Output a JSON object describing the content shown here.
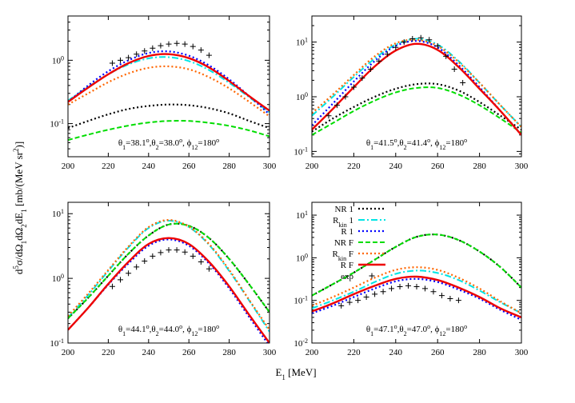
{
  "figure": {
    "xlabel": "E1 [MeV]",
    "ylabel": "d5σ/dΩ1dΩ2dE1 [mb/(MeV sr2)]"
  },
  "legend": {
    "panel": 3,
    "items": [
      {
        "series": "NR1",
        "label": "NR 1",
        "sub": ""
      },
      {
        "series": "Rkin1",
        "label": "R",
        "sub": "kin",
        "suffix": " 1"
      },
      {
        "series": "R1",
        "label": "R 1",
        "sub": ""
      },
      {
        "series": "NRF",
        "label": "NR F",
        "sub": ""
      },
      {
        "series": "RkinF",
        "label": "R",
        "sub": "kin",
        "suffix": " F"
      },
      {
        "series": "RF",
        "label": "R F",
        "sub": ""
      },
      {
        "series": "exp",
        "label": "exp",
        "sub": ""
      }
    ]
  },
  "series_styles": {
    "NR1": {
      "color": "#000000",
      "dash": "2,3",
      "width": 2.2
    },
    "Rkin1": {
      "color": "#00e5e5",
      "dash": "8,3,2,3",
      "width": 2
    },
    "R1": {
      "color": "#0000ff",
      "dash": "2,3",
      "width": 2.2
    },
    "NRF": {
      "color": "#00dd00",
      "dash": "6,3",
      "width": 2
    },
    "RkinF": {
      "color": "#ff6600",
      "dash": "2,3",
      "width": 2.2
    },
    "RF": {
      "color": "#ee0000",
      "dash": "",
      "width": 2.4
    },
    "exp": {
      "color": "#000000",
      "marker": "plus"
    }
  },
  "chart_data": [
    {
      "type": "line",
      "log_y": true,
      "xlim": [
        200,
        300
      ],
      "ylim": [
        0.03,
        5
      ],
      "xticks": [
        200,
        220,
        240,
        260,
        280,
        300
      ],
      "yticks": [
        {
          "v": 0.1,
          "label": "10-1",
          "base": "10",
          "exp": "-1"
        },
        {
          "v": 1,
          "label": "100",
          "base": "10",
          "exp": "0"
        }
      ],
      "annotation": {
        "t1": "38.1",
        "t2": "38.0",
        "phi": "180"
      },
      "annotation_text": "θ1=38.1o,θ2=38.0o, ϕ12=180o",
      "series": [
        {
          "key": "NR1",
          "x": [
            200,
            210,
            220,
            230,
            240,
            250,
            260,
            270,
            280,
            290,
            300
          ],
          "y": [
            0.085,
            0.11,
            0.14,
            0.17,
            0.19,
            0.2,
            0.195,
            0.175,
            0.145,
            0.11,
            0.085
          ]
        },
        {
          "key": "Rkin1",
          "x": [
            200,
            210,
            220,
            230,
            240,
            250,
            260,
            270,
            280,
            290,
            300
          ],
          "y": [
            0.23,
            0.38,
            0.6,
            0.86,
            1.07,
            1.12,
            0.97,
            0.7,
            0.44,
            0.26,
            0.15
          ]
        },
        {
          "key": "R1",
          "x": [
            200,
            210,
            220,
            230,
            240,
            250,
            260,
            270,
            280,
            290,
            300
          ],
          "y": [
            0.22,
            0.4,
            0.67,
            1.0,
            1.3,
            1.38,
            1.18,
            0.83,
            0.5,
            0.27,
            0.14
          ]
        },
        {
          "key": "NRF",
          "x": [
            200,
            210,
            220,
            230,
            240,
            250,
            260,
            270,
            280,
            290,
            300
          ],
          "y": [
            0.055,
            0.067,
            0.08,
            0.093,
            0.104,
            0.11,
            0.11,
            0.103,
            0.092,
            0.078,
            0.063
          ]
        },
        {
          "key": "RkinF",
          "x": [
            200,
            210,
            220,
            230,
            240,
            250,
            260,
            270,
            280,
            290,
            300
          ],
          "y": [
            0.2,
            0.3,
            0.45,
            0.62,
            0.76,
            0.8,
            0.72,
            0.54,
            0.36,
            0.22,
            0.13
          ]
        },
        {
          "key": "RF",
          "x": [
            200,
            210,
            220,
            230,
            240,
            250,
            260,
            270,
            280,
            290,
            300
          ],
          "y": [
            0.22,
            0.37,
            0.6,
            0.9,
            1.17,
            1.25,
            1.08,
            0.77,
            0.47,
            0.27,
            0.16
          ]
        },
        {
          "key": "exp",
          "x": [
            222,
            226,
            230,
            234,
            238,
            242,
            246,
            250,
            254,
            258,
            262,
            266,
            270
          ],
          "y": [
            0.9,
            1.0,
            1.1,
            1.25,
            1.4,
            1.55,
            1.7,
            1.8,
            1.85,
            1.8,
            1.65,
            1.45,
            1.2
          ]
        }
      ]
    },
    {
      "type": "line",
      "log_y": true,
      "xlim": [
        200,
        300
      ],
      "ylim": [
        0.08,
        30
      ],
      "xticks": [
        200,
        220,
        240,
        260,
        280,
        300
      ],
      "yticks": [
        {
          "v": 0.1,
          "label": "10-1",
          "base": "10",
          "exp": "-1"
        },
        {
          "v": 1,
          "label": "100",
          "base": "10",
          "exp": "0"
        },
        {
          "v": 10,
          "label": "101",
          "base": "10",
          "exp": "1"
        }
      ],
      "annotation": {
        "t1": "41.5",
        "t2": "41.4",
        "phi": "180"
      },
      "annotation_text": "θ1=41.5o,θ2=41.4o, ϕ12=180o",
      "series": [
        {
          "key": "NR1",
          "x": [
            200,
            210,
            220,
            230,
            240,
            250,
            260,
            270,
            280,
            290,
            300
          ],
          "y": [
            0.23,
            0.4,
            0.65,
            1.0,
            1.4,
            1.7,
            1.7,
            1.3,
            0.8,
            0.45,
            0.25
          ]
        },
        {
          "key": "Rkin1",
          "x": [
            200,
            210,
            220,
            230,
            240,
            250,
            260,
            270,
            280,
            290,
            300
          ],
          "y": [
            0.45,
            1.0,
            2.3,
            5.0,
            9.0,
            11.5,
            9.0,
            4.5,
            1.8,
            0.7,
            0.28
          ]
        },
        {
          "key": "R1",
          "x": [
            200,
            210,
            220,
            230,
            240,
            250,
            260,
            270,
            280,
            290,
            300
          ],
          "y": [
            0.3,
            0.75,
            1.9,
            4.5,
            8.5,
            10.5,
            8.0,
            3.8,
            1.5,
            0.55,
            0.2
          ]
        },
        {
          "key": "NRF",
          "x": [
            200,
            210,
            220,
            230,
            240,
            250,
            260,
            270,
            280,
            290,
            300
          ],
          "y": [
            0.2,
            0.33,
            0.55,
            0.85,
            1.2,
            1.45,
            1.45,
            1.1,
            0.7,
            0.4,
            0.22
          ]
        },
        {
          "key": "RkinF",
          "x": [
            200,
            210,
            220,
            230,
            240,
            250,
            260,
            270,
            280,
            290,
            300
          ],
          "y": [
            0.5,
            1.1,
            2.5,
            5.5,
            9.5,
            11.0,
            8.5,
            4.3,
            1.8,
            0.7,
            0.28
          ]
        },
        {
          "key": "RF",
          "x": [
            200,
            210,
            220,
            230,
            240,
            250,
            260,
            270,
            280,
            290,
            300
          ],
          "y": [
            0.25,
            0.6,
            1.5,
            3.6,
            7.0,
            9.3,
            7.2,
            3.5,
            1.4,
            0.55,
            0.2
          ]
        },
        {
          "key": "exp",
          "x": [
            208,
            212,
            216,
            220,
            224,
            228,
            232,
            236,
            240,
            244,
            248,
            252,
            256,
            260,
            264,
            268,
            272
          ],
          "y": [
            0.45,
            0.7,
            1.0,
            1.5,
            2.2,
            3.2,
            4.5,
            6.0,
            8.0,
            10.0,
            11.5,
            12.0,
            11.0,
            8.5,
            5.5,
            3.2,
            1.8
          ]
        }
      ]
    },
    {
      "type": "line",
      "log_y": true,
      "xlim": [
        200,
        300
      ],
      "ylim": [
        0.1,
        15
      ],
      "xticks": [
        200,
        220,
        240,
        260,
        280,
        300
      ],
      "yticks": [
        {
          "v": 0.1,
          "label": "10-1",
          "base": "10",
          "exp": "-1"
        },
        {
          "v": 1,
          "label": "100",
          "base": "10",
          "exp": "0"
        },
        {
          "v": 10,
          "label": "101",
          "base": "10",
          "exp": "1"
        }
      ],
      "annotation": {
        "t1": "44.1",
        "t2": "44.0",
        "phi": "180"
      },
      "annotation_text": "θ1=44.1o,θ2=44.0o, ϕ12=180o",
      "series": [
        {
          "key": "NR1",
          "x": [
            200,
            210,
            220,
            230,
            240,
            250,
            260,
            270,
            280,
            290,
            300
          ],
          "y": [
            0.24,
            0.5,
            1.1,
            2.4,
            4.6,
            6.8,
            6.5,
            4.2,
            2.0,
            0.8,
            0.3
          ]
        },
        {
          "key": "Rkin1",
          "x": [
            200,
            210,
            220,
            230,
            240,
            250,
            260,
            270,
            280,
            290,
            300
          ],
          "y": [
            0.25,
            0.55,
            1.3,
            3.0,
            6.0,
            7.8,
            6.2,
            3.3,
            1.3,
            0.45,
            0.15
          ]
        },
        {
          "key": "R1",
          "x": [
            200,
            210,
            220,
            230,
            240,
            250,
            260,
            270,
            280,
            290,
            300
          ],
          "y": [
            0.16,
            0.35,
            0.8,
            1.7,
            3.2,
            4.0,
            3.2,
            1.7,
            0.7,
            0.25,
            0.09
          ]
        },
        {
          "key": "NRF",
          "x": [
            200,
            210,
            220,
            230,
            240,
            250,
            260,
            270,
            280,
            290,
            300
          ],
          "y": [
            0.24,
            0.5,
            1.1,
            2.4,
            4.6,
            6.8,
            6.5,
            4.2,
            2.0,
            0.8,
            0.3
          ]
        },
        {
          "key": "RkinF",
          "x": [
            200,
            210,
            220,
            230,
            240,
            250,
            260,
            270,
            280,
            290,
            300
          ],
          "y": [
            0.26,
            0.58,
            1.35,
            3.1,
            6.2,
            8.0,
            6.3,
            3.4,
            1.35,
            0.46,
            0.16
          ]
        },
        {
          "key": "RF",
          "x": [
            200,
            210,
            220,
            230,
            240,
            250,
            260,
            270,
            280,
            290,
            300
          ],
          "y": [
            0.16,
            0.35,
            0.82,
            1.8,
            3.4,
            4.2,
            3.4,
            1.8,
            0.75,
            0.27,
            0.1
          ]
        },
        {
          "key": "exp",
          "x": [
            222,
            226,
            230,
            234,
            238,
            242,
            246,
            250,
            254,
            258,
            262,
            266,
            270
          ],
          "y": [
            0.75,
            0.95,
            1.2,
            1.5,
            1.85,
            2.2,
            2.5,
            2.75,
            2.75,
            2.55,
            2.2,
            1.8,
            1.4
          ]
        }
      ]
    },
    {
      "type": "line",
      "log_y": true,
      "xlim": [
        200,
        300
      ],
      "ylim": [
        0.01,
        20
      ],
      "xticks": [
        200,
        220,
        240,
        260,
        280,
        300
      ],
      "yticks": [
        {
          "v": 0.01,
          "label": "10-2",
          "base": "10",
          "exp": "-2"
        },
        {
          "v": 0.1,
          "label": "10-1",
          "base": "10",
          "exp": "-1"
        },
        {
          "v": 1,
          "label": "100",
          "base": "10",
          "exp": "0"
        },
        {
          "v": 10,
          "label": "101",
          "base": "10",
          "exp": "1"
        }
      ],
      "annotation": {
        "t1": "47.1",
        "t2": "47.0",
        "phi": "180"
      },
      "annotation_text": "θ1=47.1o,θ2=47.0o, ϕ12=180o",
      "series": [
        {
          "key": "NR1",
          "x": [
            200,
            210,
            220,
            230,
            240,
            250,
            260,
            270,
            280,
            290,
            300
          ],
          "y": [
            0.13,
            0.24,
            0.45,
            0.9,
            1.8,
            3.1,
            3.5,
            2.6,
            1.4,
            0.6,
            0.2
          ]
        },
        {
          "key": "Rkin1",
          "x": [
            200,
            210,
            220,
            230,
            240,
            250,
            260,
            270,
            280,
            290,
            300
          ],
          "y": [
            0.065,
            0.1,
            0.16,
            0.27,
            0.42,
            0.5,
            0.44,
            0.3,
            0.17,
            0.09,
            0.05
          ]
        },
        {
          "key": "R1",
          "x": [
            200,
            210,
            220,
            230,
            240,
            250,
            260,
            270,
            280,
            290,
            300
          ],
          "y": [
            0.05,
            0.075,
            0.12,
            0.19,
            0.28,
            0.32,
            0.27,
            0.18,
            0.11,
            0.06,
            0.035
          ]
        },
        {
          "key": "NRF",
          "x": [
            200,
            210,
            220,
            230,
            240,
            250,
            260,
            270,
            280,
            290,
            300
          ],
          "y": [
            0.13,
            0.24,
            0.45,
            0.9,
            1.8,
            3.1,
            3.5,
            2.6,
            1.4,
            0.6,
            0.2
          ]
        },
        {
          "key": "RkinF",
          "x": [
            200,
            210,
            220,
            230,
            240,
            250,
            260,
            270,
            280,
            290,
            300
          ],
          "y": [
            0.075,
            0.12,
            0.2,
            0.34,
            0.52,
            0.6,
            0.52,
            0.34,
            0.19,
            0.095,
            0.05
          ]
        },
        {
          "key": "RF",
          "x": [
            200,
            210,
            220,
            230,
            240,
            250,
            260,
            270,
            280,
            290,
            300
          ],
          "y": [
            0.055,
            0.085,
            0.14,
            0.22,
            0.32,
            0.36,
            0.3,
            0.2,
            0.12,
            0.065,
            0.04
          ]
        },
        {
          "key": "exp",
          "x": [
            214,
            218,
            222,
            226,
            230,
            234,
            238,
            242,
            246,
            250,
            254,
            258,
            262,
            266,
            270
          ],
          "y": [
            0.075,
            0.09,
            0.1,
            0.12,
            0.14,
            0.16,
            0.19,
            0.21,
            0.22,
            0.21,
            0.19,
            0.16,
            0.13,
            0.11,
            0.1
          ]
        }
      ]
    }
  ]
}
